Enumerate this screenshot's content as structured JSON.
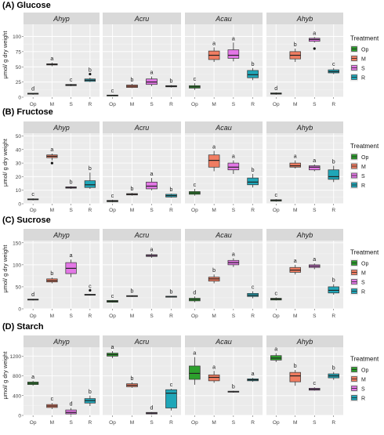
{
  "legend": {
    "title": "Treatment",
    "entries": [
      {
        "label": "Op",
        "color": "#2ca02c"
      },
      {
        "label": "M",
        "color": "#f07d62"
      },
      {
        "label": "S",
        "color": "#e377e6"
      },
      {
        "label": "R",
        "color": "#1fa6b8"
      }
    ]
  },
  "chart_data": [
    {
      "type": "box",
      "title": "(A) Glucose",
      "ylabel": "μmol/ g dry weight",
      "ylim": [
        0,
        120
      ],
      "yticks": [
        0,
        25,
        50,
        75,
        100
      ],
      "categories": [
        "Op",
        "M",
        "S",
        "R"
      ],
      "panels": [
        {
          "name": "Ahyp",
          "boxes": [
            {
              "cat": "Op",
              "min": 4,
              "q1": 5,
              "median": 6,
              "q3": 6.5,
              "max": 7,
              "letter": "d",
              "outliers": []
            },
            {
              "cat": "M",
              "min": 51,
              "q1": 53,
              "median": 54,
              "q3": 55,
              "max": 57,
              "letter": "a",
              "outliers": []
            },
            {
              "cat": "S",
              "min": 18,
              "q1": 19,
              "median": 20,
              "q3": 21,
              "max": 22,
              "letter": "c",
              "outliers": []
            },
            {
              "cat": "R",
              "min": 25,
              "q1": 26,
              "median": 28,
              "q3": 30,
              "max": 32,
              "letter": "b",
              "outliers": [
                38
              ]
            }
          ]
        },
        {
          "name": "Acru",
          "boxes": [
            {
              "cat": "Op",
              "min": 2,
              "q1": 2.5,
              "median": 3,
              "q3": 3.5,
              "max": 4,
              "letter": "c",
              "outliers": []
            },
            {
              "cat": "M",
              "min": 15,
              "q1": 16,
              "median": 18,
              "q3": 20,
              "max": 22,
              "letter": "b",
              "outliers": []
            },
            {
              "cat": "S",
              "min": 18,
              "q1": 21,
              "median": 25,
              "q3": 30,
              "max": 34,
              "letter": "a",
              "outliers": []
            },
            {
              "cat": "R",
              "min": 16,
              "q1": 17,
              "median": 18,
              "q3": 19,
              "max": 20,
              "letter": "b",
              "outliers": []
            }
          ]
        },
        {
          "name": "Acau",
          "boxes": [
            {
              "cat": "Op",
              "min": 12,
              "q1": 15,
              "median": 17,
              "q3": 19,
              "max": 23,
              "letter": "c",
              "outliers": []
            },
            {
              "cat": "M",
              "min": 58,
              "q1": 62,
              "median": 69,
              "q3": 76,
              "max": 82,
              "letter": "a",
              "outliers": []
            },
            {
              "cat": "S",
              "min": 59,
              "q1": 64,
              "median": 69,
              "q3": 78,
              "max": 90,
              "letter": "a",
              "outliers": []
            },
            {
              "cat": "R",
              "min": 28,
              "q1": 32,
              "median": 37,
              "q3": 44,
              "max": 48,
              "letter": "b",
              "outliers": []
            }
          ]
        },
        {
          "name": "Ahyb",
          "boxes": [
            {
              "cat": "Op",
              "min": 4,
              "q1": 5,
              "median": 6,
              "q3": 7,
              "max": 8,
              "letter": "d",
              "outliers": []
            },
            {
              "cat": "M",
              "min": 58,
              "q1": 63,
              "median": 69,
              "q3": 75,
              "max": 80,
              "letter": "b",
              "outliers": []
            },
            {
              "cat": "S",
              "min": 90,
              "q1": 92,
              "median": 95,
              "q3": 97,
              "max": 99,
              "letter": "a",
              "outliers": [
                80
              ]
            },
            {
              "cat": "R",
              "min": 38,
              "q1": 40,
              "median": 42,
              "q3": 45,
              "max": 48,
              "letter": "c",
              "outliers": []
            }
          ]
        }
      ]
    },
    {
      "type": "box",
      "title": "(B) Fructose",
      "ylabel": "μmol/ g dry weight",
      "ylim": [
        0,
        52
      ],
      "yticks": [
        0,
        10,
        20,
        30,
        40,
        50
      ],
      "categories": [
        "Op",
        "M",
        "S",
        "R"
      ],
      "panels": [
        {
          "name": "Ahyp",
          "boxes": [
            {
              "cat": "Op",
              "min": 2.5,
              "q1": 3,
              "median": 3.3,
              "q3": 3.6,
              "max": 4,
              "letter": "c",
              "outliers": []
            },
            {
              "cat": "M",
              "min": 32,
              "q1": 34,
              "median": 35,
              "q3": 36,
              "max": 37,
              "letter": "a",
              "outliers": [
                30
              ]
            },
            {
              "cat": "S",
              "min": 11,
              "q1": 11.5,
              "median": 12,
              "q3": 12.5,
              "max": 13,
              "letter": "b",
              "outliers": []
            },
            {
              "cat": "R",
              "min": 11,
              "q1": 12,
              "median": 14,
              "q3": 17,
              "max": 23,
              "letter": "b",
              "outliers": []
            }
          ]
        },
        {
          "name": "Acru",
          "boxes": [
            {
              "cat": "Op",
              "min": 1,
              "q1": 1.5,
              "median": 2,
              "q3": 2.5,
              "max": 3,
              "letter": "c",
              "outliers": []
            },
            {
              "cat": "M",
              "min": 6,
              "q1": 6.5,
              "median": 7,
              "q3": 7.5,
              "max": 8,
              "letter": "b",
              "outliers": []
            },
            {
              "cat": "S",
              "min": 10,
              "q1": 11,
              "median": 13,
              "q3": 16,
              "max": 19,
              "letter": "a",
              "outliers": []
            },
            {
              "cat": "R",
              "min": 4.5,
              "q1": 5,
              "median": 6,
              "q3": 7,
              "max": 7.5,
              "letter": "b",
              "outliers": []
            }
          ]
        },
        {
          "name": "Acau",
          "boxes": [
            {
              "cat": "Op",
              "min": 6,
              "q1": 7,
              "median": 8,
              "q3": 9,
              "max": 11,
              "letter": "c",
              "outliers": []
            },
            {
              "cat": "M",
              "min": 24,
              "q1": 27,
              "median": 32,
              "q3": 36,
              "max": 39,
              "letter": "a",
              "outliers": []
            },
            {
              "cat": "S",
              "min": 22,
              "q1": 25,
              "median": 27,
              "q3": 30,
              "max": 32,
              "letter": "a",
              "outliers": []
            },
            {
              "cat": "R",
              "min": 12,
              "q1": 14,
              "median": 16,
              "q3": 19,
              "max": 22,
              "letter": "b",
              "outliers": []
            }
          ]
        },
        {
          "name": "Ahyb",
          "boxes": [
            {
              "cat": "Op",
              "min": 1.5,
              "q1": 2,
              "median": 2.5,
              "q3": 3,
              "max": 3.5,
              "letter": "c",
              "outliers": []
            },
            {
              "cat": "M",
              "min": 26,
              "q1": 27,
              "median": 28,
              "q3": 30,
              "max": 32,
              "letter": "a",
              "outliers": []
            },
            {
              "cat": "S",
              "min": 24,
              "q1": 25,
              "median": 27,
              "q3": 28,
              "max": 29,
              "letter": "a",
              "outliers": []
            },
            {
              "cat": "R",
              "min": 16,
              "q1": 18,
              "median": 20,
              "q3": 25,
              "max": 28,
              "letter": "b",
              "outliers": []
            }
          ]
        }
      ]
    },
    {
      "type": "box",
      "title": "(C) Sucrose",
      "ylabel": "μmol/ g dry weight",
      "ylim": [
        0,
        155
      ],
      "yticks": [
        0,
        50,
        100,
        150
      ],
      "categories": [
        "Op",
        "M",
        "S",
        "R"
      ],
      "panels": [
        {
          "name": "Ahyp",
          "boxes": [
            {
              "cat": "Op",
              "min": 19,
              "q1": 20,
              "median": 21,
              "q3": 22,
              "max": 23,
              "letter": "d",
              "outliers": []
            },
            {
              "cat": "M",
              "min": 58,
              "q1": 61,
              "median": 64,
              "q3": 68,
              "max": 71,
              "letter": "b",
              "outliers": []
            },
            {
              "cat": "S",
              "min": 72,
              "q1": 80,
              "median": 92,
              "q3": 105,
              "max": 112,
              "letter": "a",
              "outliers": []
            },
            {
              "cat": "R",
              "min": 30,
              "q1": 31,
              "median": 32,
              "q3": 33,
              "max": 34,
              "letter": "c",
              "outliers": [
                42
              ]
            }
          ]
        },
        {
          "name": "Acru",
          "boxes": [
            {
              "cat": "Op",
              "min": 14,
              "q1": 15,
              "median": 17,
              "q3": 19,
              "max": 20,
              "letter": "c",
              "outliers": []
            },
            {
              "cat": "M",
              "min": 27,
              "q1": 28,
              "median": 29,
              "q3": 30,
              "max": 31,
              "letter": "b",
              "outliers": []
            },
            {
              "cat": "S",
              "min": 116,
              "q1": 119,
              "median": 121,
              "q3": 123,
              "max": 126,
              "letter": "a",
              "outliers": []
            },
            {
              "cat": "R",
              "min": 27,
              "q1": 27.5,
              "median": 28,
              "q3": 28.5,
              "max": 29,
              "letter": "b",
              "outliers": []
            }
          ]
        },
        {
          "name": "Acau",
          "boxes": [
            {
              "cat": "Op",
              "min": 15,
              "q1": 18,
              "median": 21,
              "q3": 24,
              "max": 28,
              "letter": "d",
              "outliers": []
            },
            {
              "cat": "M",
              "min": 58,
              "q1": 63,
              "median": 68,
              "q3": 72,
              "max": 78,
              "letter": "b",
              "outliers": []
            },
            {
              "cat": "S",
              "min": 95,
              "q1": 100,
              "median": 105,
              "q3": 110,
              "max": 115,
              "letter": "a",
              "outliers": []
            },
            {
              "cat": "R",
              "min": 24,
              "q1": 28,
              "median": 31,
              "q3": 35,
              "max": 40,
              "letter": "c",
              "outliers": []
            }
          ]
        },
        {
          "name": "Ahyb",
          "boxes": [
            {
              "cat": "Op",
              "min": 19,
              "q1": 20,
              "median": 22,
              "q3": 24,
              "max": 26,
              "letter": "c",
              "outliers": []
            },
            {
              "cat": "M",
              "min": 78,
              "q1": 83,
              "median": 88,
              "q3": 94,
              "max": 100,
              "letter": "a",
              "outliers": []
            },
            {
              "cat": "S",
              "min": 90,
              "q1": 94,
              "median": 97,
              "q3": 100,
              "max": 103,
              "letter": "a",
              "outliers": []
            },
            {
              "cat": "R",
              "min": 32,
              "q1": 36,
              "median": 42,
              "q3": 50,
              "max": 56,
              "letter": "b",
              "outliers": []
            }
          ]
        }
      ]
    },
    {
      "type": "box",
      "title": "(D) Starch",
      "ylabel": "μmol/ g dry weight",
      "ylim": [
        0,
        1380
      ],
      "yticks": [
        0,
        400,
        800,
        1200
      ],
      "categories": [
        "Op",
        "M",
        "S",
        "R"
      ],
      "panels": [
        {
          "name": "Ahyp",
          "boxes": [
            {
              "cat": "Op",
              "min": 600,
              "q1": 625,
              "median": 650,
              "q3": 675,
              "max": 700,
              "letter": "a",
              "outliers": []
            },
            {
              "cat": "M",
              "min": 130,
              "q1": 160,
              "median": 190,
              "q3": 220,
              "max": 250,
              "letter": "c",
              "outliers": []
            },
            {
              "cat": "S",
              "min": 10,
              "q1": 30,
              "median": 60,
              "q3": 110,
              "max": 150,
              "letter": "d",
              "outliers": []
            },
            {
              "cat": "R",
              "min": 190,
              "q1": 250,
              "median": 300,
              "q3": 340,
              "max": 400,
              "letter": "b",
              "outliers": []
            }
          ]
        },
        {
          "name": "Acru",
          "boxes": [
            {
              "cat": "Op",
              "min": 1160,
              "q1": 1200,
              "median": 1230,
              "q3": 1260,
              "max": 1300,
              "letter": "a",
              "outliers": []
            },
            {
              "cat": "M",
              "min": 560,
              "q1": 580,
              "median": 610,
              "q3": 640,
              "max": 670,
              "letter": "b",
              "outliers": []
            },
            {
              "cat": "S",
              "min": 20,
              "q1": 30,
              "median": 45,
              "q3": 60,
              "max": 70,
              "letter": "d",
              "outliers": []
            },
            {
              "cat": "R",
              "min": 100,
              "q1": 150,
              "median": 450,
              "q3": 520,
              "max": 540,
              "letter": "c",
              "outliers": []
            }
          ]
        },
        {
          "name": "Acau",
          "boxes": [
            {
              "cat": "Op",
              "min": 620,
              "q1": 730,
              "median": 850,
              "q3": 1000,
              "max": 1180,
              "letter": "a",
              "outliers": []
            },
            {
              "cat": "M",
              "min": 660,
              "q1": 700,
              "median": 770,
              "q3": 820,
              "max": 900,
              "letter": "a",
              "outliers": []
            },
            {
              "cat": "S",
              "min": 460,
              "q1": 470,
              "median": 480,
              "q3": 490,
              "max": 500,
              "letter": "b",
              "outliers": []
            },
            {
              "cat": "R",
              "min": 680,
              "q1": 700,
              "median": 720,
              "q3": 740,
              "max": 760,
              "letter": "a",
              "outliers": []
            }
          ]
        },
        {
          "name": "Ahyb",
          "boxes": [
            {
              "cat": "Op",
              "min": 1080,
              "q1": 1120,
              "median": 1160,
              "q3": 1210,
              "max": 1260,
              "letter": "a",
              "outliers": []
            },
            {
              "cat": "M",
              "min": 600,
              "q1": 680,
              "median": 800,
              "q3": 870,
              "max": 920,
              "letter": "b",
              "outliers": []
            },
            {
              "cat": "S",
              "min": 500,
              "q1": 510,
              "median": 530,
              "q3": 550,
              "max": 570,
              "letter": "c",
              "outliers": []
            },
            {
              "cat": "R",
              "min": 720,
              "q1": 760,
              "median": 800,
              "q3": 840,
              "max": 880,
              "letter": "b",
              "outliers": []
            }
          ]
        }
      ]
    }
  ]
}
